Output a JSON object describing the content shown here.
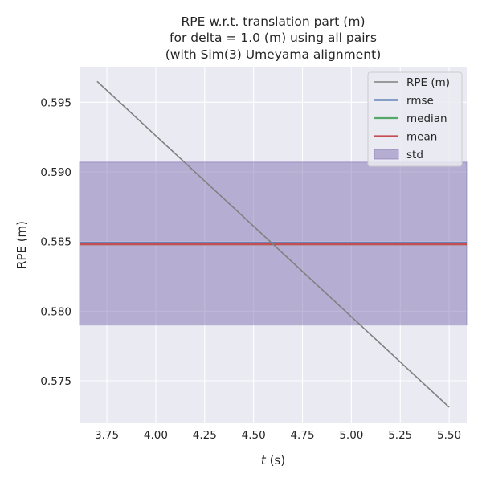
{
  "chart_data": {
    "type": "line",
    "title_lines": [
      "RPE w.r.t. translation part (m)",
      "for delta = 1.0 (m) using all pairs",
      "(with Sim(3) Umeyama alignment)"
    ],
    "xlabel_var": "t",
    "xlabel_unit": " (s)",
    "ylabel": "RPE (m)",
    "xlim": [
      3.61,
      5.59
    ],
    "ylim": [
      0.572,
      0.5975
    ],
    "x_ticks": [
      3.75,
      4.0,
      4.25,
      4.5,
      4.75,
      5.0,
      5.25,
      5.5
    ],
    "x_tick_labels": [
      "3.75",
      "4.00",
      "4.25",
      "4.50",
      "4.75",
      "5.00",
      "5.25",
      "5.50"
    ],
    "y_ticks": [
      0.575,
      0.58,
      0.585,
      0.59,
      0.595
    ],
    "y_tick_labels": [
      "0.575",
      "0.580",
      "0.585",
      "0.590",
      "0.595"
    ],
    "grid": true,
    "legend_position": "top-right",
    "series": [
      {
        "name": "RPE (m)",
        "kind": "line",
        "color": "#808080",
        "x": [
          3.7,
          5.5
        ],
        "y": [
          0.5965,
          0.5731
        ]
      },
      {
        "name": "rmse",
        "kind": "hline",
        "color": "#4c72b0",
        "y": 0.5849
      },
      {
        "name": "median",
        "kind": "hline",
        "color": "#55a868",
        "y": 0.5848
      },
      {
        "name": "mean",
        "kind": "hline",
        "color": "#c44e52",
        "y": 0.5848
      },
      {
        "name": "std",
        "kind": "band",
        "color": "#8172b2",
        "y0": 0.579,
        "y1": 0.5907
      }
    ],
    "colors": {
      "plot_background": "#eaeaf2",
      "grid": "#ffffff",
      "text": "#262626"
    }
  }
}
